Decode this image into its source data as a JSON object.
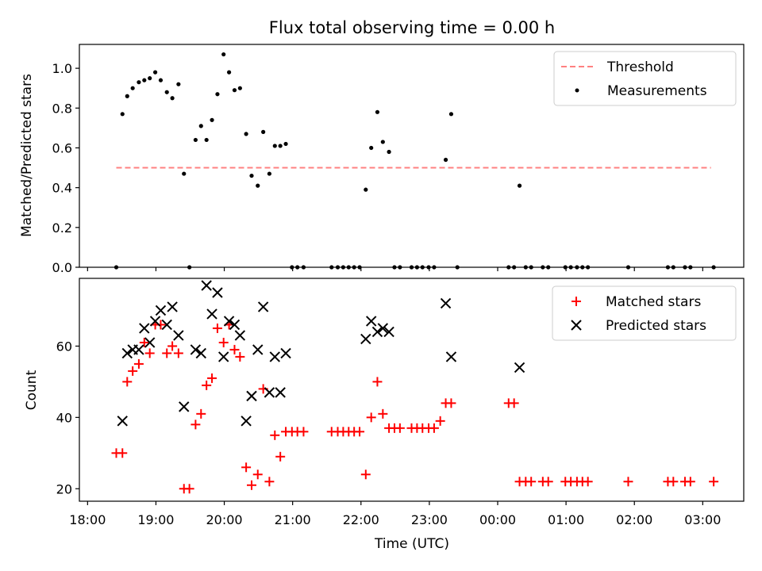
{
  "chart_data": {
    "title": "Flux total observing time = 0.00 h",
    "xlabel": "Time (UTC)",
    "x_unit": "hours since 18:00 UTC",
    "x_ticks": [
      {
        "x": 0,
        "label": "18:00"
      },
      {
        "x": 1,
        "label": "19:00"
      },
      {
        "x": 2,
        "label": "20:00"
      },
      {
        "x": 3,
        "label": "21:00"
      },
      {
        "x": 4,
        "label": "22:00"
      },
      {
        "x": 5,
        "label": "23:00"
      },
      {
        "x": 6,
        "label": "00:00"
      },
      {
        "x": 7,
        "label": "01:00"
      },
      {
        "x": 8,
        "label": "02:00"
      },
      {
        "x": 9,
        "label": "03:00"
      }
    ],
    "panels": [
      {
        "type": "scatter",
        "ylabel": "Matched/Predicted stars",
        "ylim": [
          0,
          1.12
        ],
        "y_ticks": [
          0,
          0.2,
          0.4,
          0.6,
          0.8,
          1.0
        ],
        "y_tick_labels": [
          "0.0",
          "0.2",
          "0.4",
          "0.6",
          "0.8",
          "1.0"
        ],
        "legend_position": "upper right",
        "threshold": {
          "name": "Threshold",
          "y": 0.5,
          "x_range": [
            0.42,
            9.12
          ],
          "color": "#ff8080"
        },
        "series": [
          {
            "name": "Measurements",
            "marker": "dot",
            "color": "#000000",
            "points": [
              [
                0.42,
                0.0
              ],
              [
                0.51,
                0.77
              ],
              [
                0.58,
                0.86
              ],
              [
                0.66,
                0.9
              ],
              [
                0.75,
                0.93
              ],
              [
                0.83,
                0.94
              ],
              [
                0.91,
                0.95
              ],
              [
                0.99,
                0.98
              ],
              [
                1.07,
                0.94
              ],
              [
                1.16,
                0.88
              ],
              [
                1.24,
                0.85
              ],
              [
                1.33,
                0.92
              ],
              [
                1.41,
                0.47
              ],
              [
                1.49,
                0.0
              ],
              [
                1.58,
                0.64
              ],
              [
                1.66,
                0.71
              ],
              [
                1.74,
                0.64
              ],
              [
                1.82,
                0.74
              ],
              [
                1.9,
                0.87
              ],
              [
                1.99,
                1.07
              ],
              [
                2.07,
                0.98
              ],
              [
                2.15,
                0.89
              ],
              [
                2.23,
                0.9
              ],
              [
                2.32,
                0.67
              ],
              [
                2.4,
                0.46
              ],
              [
                2.49,
                0.41
              ],
              [
                2.57,
                0.68
              ],
              [
                2.66,
                0.47
              ],
              [
                2.74,
                0.61
              ],
              [
                2.82,
                0.61
              ],
              [
                2.9,
                0.62
              ],
              [
                2.99,
                0.0
              ],
              [
                3.07,
                0.0
              ],
              [
                3.16,
                0.0
              ],
              [
                3.57,
                0.0
              ],
              [
                3.66,
                0.0
              ],
              [
                3.74,
                0.0
              ],
              [
                3.82,
                0.0
              ],
              [
                3.9,
                0.0
              ],
              [
                3.98,
                0.0
              ],
              [
                4.07,
                0.39
              ],
              [
                4.15,
                0.6
              ],
              [
                4.24,
                0.78
              ],
              [
                4.32,
                0.63
              ],
              [
                4.41,
                0.58
              ],
              [
                4.49,
                0.0
              ],
              [
                4.57,
                0.0
              ],
              [
                4.74,
                0.0
              ],
              [
                4.82,
                0.0
              ],
              [
                4.9,
                0.0
              ],
              [
                4.99,
                0.0
              ],
              [
                5.07,
                0.0
              ],
              [
                5.24,
                0.54
              ],
              [
                5.32,
                0.77
              ],
              [
                5.41,
                0.0
              ],
              [
                6.16,
                0.0
              ],
              [
                6.24,
                0.0
              ],
              [
                6.32,
                0.41
              ],
              [
                6.41,
                0.0
              ],
              [
                6.49,
                0.0
              ],
              [
                6.66,
                0.0
              ],
              [
                6.74,
                0.0
              ],
              [
                6.99,
                0.0
              ],
              [
                7.07,
                0.0
              ],
              [
                7.16,
                0.0
              ],
              [
                7.24,
                0.0
              ],
              [
                7.32,
                0.0
              ],
              [
                7.91,
                0.0
              ],
              [
                8.49,
                0.0
              ],
              [
                8.57,
                0.0
              ],
              [
                8.74,
                0.0
              ],
              [
                8.82,
                0.0
              ],
              [
                9.16,
                0.0
              ]
            ]
          }
        ]
      },
      {
        "type": "scatter",
        "ylabel": "Count",
        "ylim": [
          16.5,
          79
        ],
        "y_ticks": [
          20,
          40,
          60
        ],
        "y_tick_labels": [
          "20",
          "40",
          "60"
        ],
        "legend_position": "upper right",
        "series": [
          {
            "name": "Matched stars",
            "marker": "plus",
            "color": "#ff0000",
            "points": [
              [
                0.42,
                30
              ],
              [
                0.51,
                30
              ],
              [
                0.58,
                50
              ],
              [
                0.66,
                53
              ],
              [
                0.75,
                55
              ],
              [
                0.83,
                61
              ],
              [
                0.91,
                58
              ],
              [
                0.99,
                66
              ],
              [
                1.07,
                66
              ],
              [
                1.16,
                58
              ],
              [
                1.24,
                60
              ],
              [
                1.33,
                58
              ],
              [
                1.41,
                20
              ],
              [
                1.49,
                20
              ],
              [
                1.58,
                38
              ],
              [
                1.66,
                41
              ],
              [
                1.74,
                49
              ],
              [
                1.82,
                51
              ],
              [
                1.9,
                65
              ],
              [
                1.99,
                61
              ],
              [
                2.07,
                66
              ],
              [
                2.15,
                59
              ],
              [
                2.23,
                57
              ],
              [
                2.32,
                26
              ],
              [
                2.4,
                21
              ],
              [
                2.49,
                24
              ],
              [
                2.57,
                48
              ],
              [
                2.66,
                22
              ],
              [
                2.74,
                35
              ],
              [
                2.82,
                29
              ],
              [
                2.9,
                36
              ],
              [
                2.99,
                36
              ],
              [
                3.07,
                36
              ],
              [
                3.16,
                36
              ],
              [
                3.57,
                36
              ],
              [
                3.66,
                36
              ],
              [
                3.74,
                36
              ],
              [
                3.82,
                36
              ],
              [
                3.9,
                36
              ],
              [
                3.98,
                36
              ],
              [
                4.07,
                24
              ],
              [
                4.15,
                40
              ],
              [
                4.24,
                50
              ],
              [
                4.32,
                41
              ],
              [
                4.41,
                37
              ],
              [
                4.49,
                37
              ],
              [
                4.57,
                37
              ],
              [
                4.74,
                37
              ],
              [
                4.82,
                37
              ],
              [
                4.9,
                37
              ],
              [
                4.99,
                37
              ],
              [
                5.07,
                37
              ],
              [
                5.16,
                39
              ],
              [
                5.24,
                44
              ],
              [
                5.32,
                44
              ],
              [
                6.16,
                44
              ],
              [
                6.24,
                44
              ],
              [
                6.32,
                22
              ],
              [
                6.41,
                22
              ],
              [
                6.49,
                22
              ],
              [
                6.66,
                22
              ],
              [
                6.74,
                22
              ],
              [
                6.99,
                22
              ],
              [
                7.07,
                22
              ],
              [
                7.16,
                22
              ],
              [
                7.24,
                22
              ],
              [
                7.32,
                22
              ],
              [
                7.91,
                22
              ],
              [
                8.49,
                22
              ],
              [
                8.57,
                22
              ],
              [
                8.74,
                22
              ],
              [
                8.82,
                22
              ],
              [
                9.16,
                22
              ]
            ]
          },
          {
            "name": "Predicted stars",
            "marker": "x",
            "color": "#000000",
            "points": [
              [
                0.51,
                39
              ],
              [
                0.58,
                58
              ],
              [
                0.66,
                59
              ],
              [
                0.75,
                59
              ],
              [
                0.83,
                65
              ],
              [
                0.91,
                61
              ],
              [
                0.99,
                67
              ],
              [
                1.07,
                70
              ],
              [
                1.16,
                66
              ],
              [
                1.24,
                71
              ],
              [
                1.33,
                63
              ],
              [
                1.41,
                43
              ],
              [
                1.58,
                59
              ],
              [
                1.66,
                58
              ],
              [
                1.74,
                77
              ],
              [
                1.82,
                69
              ],
              [
                1.9,
                75
              ],
              [
                1.99,
                57
              ],
              [
                2.07,
                67
              ],
              [
                2.15,
                66
              ],
              [
                2.23,
                63
              ],
              [
                2.32,
                39
              ],
              [
                2.4,
                46
              ],
              [
                2.49,
                59
              ],
              [
                2.57,
                71
              ],
              [
                2.66,
                47
              ],
              [
                2.74,
                57
              ],
              [
                2.82,
                47
              ],
              [
                2.9,
                58
              ],
              [
                4.07,
                62
              ],
              [
                4.15,
                67
              ],
              [
                4.24,
                64
              ],
              [
                4.32,
                65
              ],
              [
                4.41,
                64
              ],
              [
                5.24,
                72
              ],
              [
                5.32,
                57
              ],
              [
                6.32,
                54
              ]
            ]
          }
        ]
      }
    ]
  }
}
